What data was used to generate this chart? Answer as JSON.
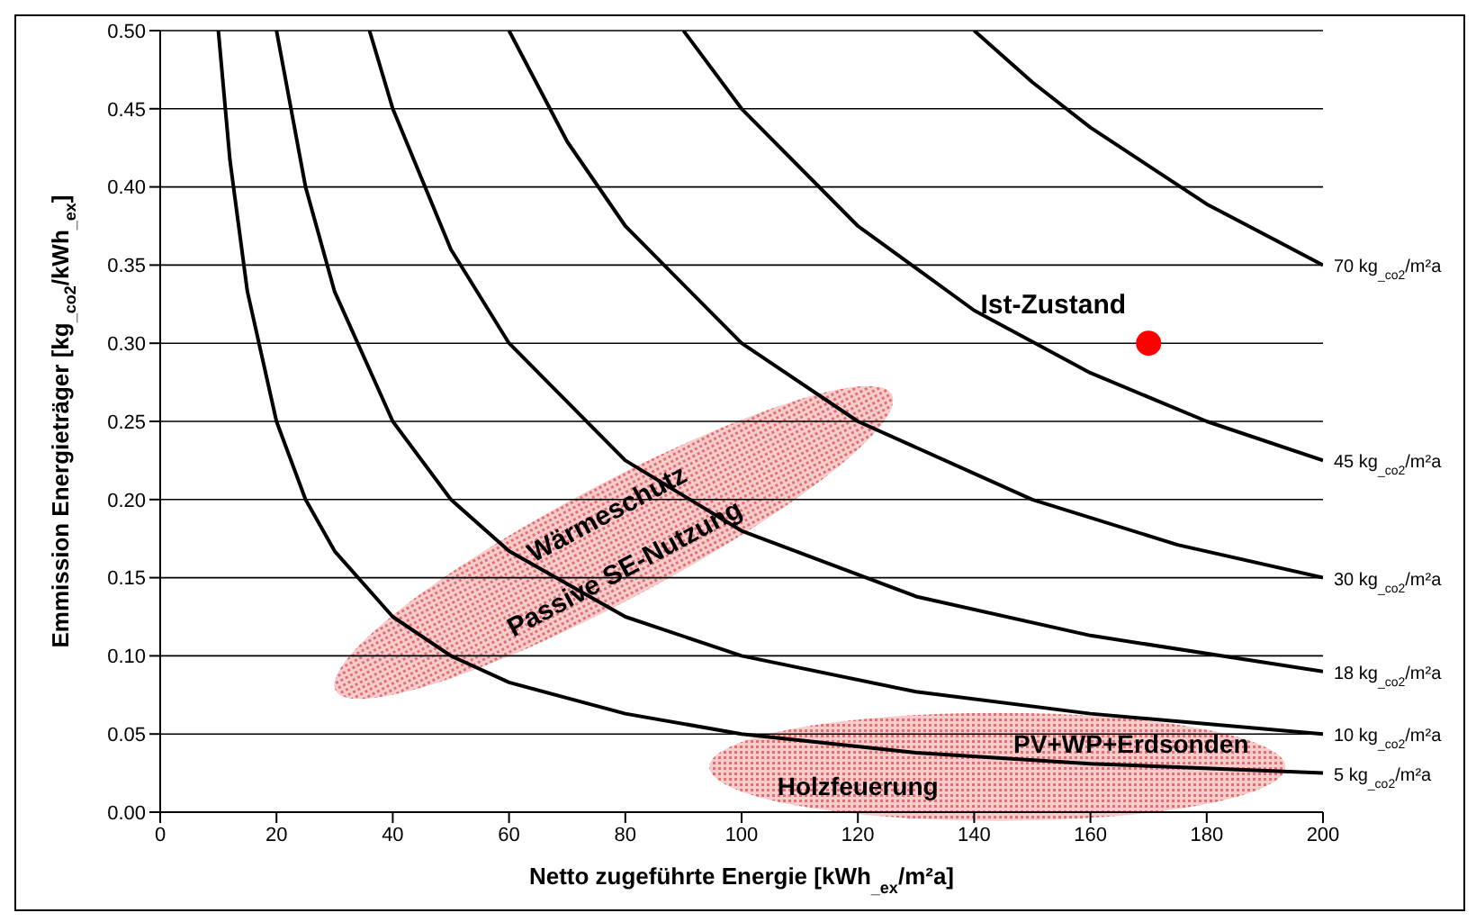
{
  "chart_data": {
    "type": "line",
    "xlabel": "Netto zugeführte Energie [kWh$_{_ex}$/m²a]",
    "ylabel": "Emmission Energieträger [kg$_{_co2}$/kWh$_{_ex}$]",
    "xlim": [
      0,
      200
    ],
    "xticks": [
      0,
      20,
      40,
      60,
      80,
      100,
      120,
      140,
      160,
      180,
      200
    ],
    "ylim": [
      0,
      0.5
    ],
    "yticks": [
      {
        "value": 0,
        "label": "0.00"
      },
      0.05,
      {
        "value": 0.1,
        "label": "0.10"
      },
      0.15,
      {
        "value": 0.2,
        "label": "0.20"
      },
      0.25,
      {
        "value": 0.3,
        "label": "0.30"
      },
      0.35,
      {
        "value": 0.4,
        "label": "0.40"
      },
      0.45,
      {
        "value": 0.5,
        "label": "0.50"
      }
    ],
    "grid": "y",
    "marker": "none",
    "line_style": "solid",
    "series": [
      {
        "name": "70 kg$_{_co2}$/m²a",
        "color": "#000000",
        "x": [
          140,
          150,
          160,
          180,
          200
        ],
        "values": [
          0.5,
          0.467,
          0.438,
          0.389,
          0.35
        ]
      },
      {
        "name": "45 kg$_{_co2}$/m²a",
        "color": "#000000",
        "x": [
          90,
          100,
          120,
          140,
          160,
          180,
          200
        ],
        "values": [
          0.5,
          0.45,
          0.375,
          0.321,
          0.281,
          0.25,
          0.225
        ]
      },
      {
        "name": "30 kg$_{_co2}$/m²a",
        "color": "#000000",
        "x": [
          60,
          70,
          80,
          100,
          120,
          150,
          175,
          200
        ],
        "values": [
          0.5,
          0.429,
          0.375,
          0.3,
          0.25,
          0.2,
          0.171,
          0.15
        ]
      },
      {
        "name": "18 kg$_{_co2}$/m²a",
        "color": "#000000",
        "x": [
          36,
          40,
          50,
          60,
          80,
          100,
          130,
          160,
          200
        ],
        "values": [
          0.5,
          0.45,
          0.36,
          0.3,
          0.225,
          0.18,
          0.138,
          0.113,
          0.09
        ]
      },
      {
        "name": "10 kg$_{_co2}$/m²a",
        "color": "#000000",
        "x": [
          20,
          25,
          30,
          40,
          50,
          60,
          80,
          100,
          130,
          160,
          200
        ],
        "values": [
          0.5,
          0.4,
          0.333,
          0.25,
          0.2,
          0.167,
          0.125,
          0.1,
          0.077,
          0.063,
          0.05
        ]
      },
      {
        "name": "5 kg$_{_co2}$/m²a",
        "color": "#000000",
        "x": [
          10,
          12,
          15,
          20,
          25,
          30,
          40,
          50,
          60,
          80,
          100,
          130,
          160,
          200
        ],
        "values": [
          0.5,
          0.417,
          0.333,
          0.25,
          0.2,
          0.167,
          0.125,
          0.1,
          0.083,
          0.063,
          0.05,
          0.038,
          0.031,
          0.025
        ]
      },
      {
        "name": "Ist-Zustand",
        "type": "scatter",
        "marker": "circle",
        "color": "#ff0000",
        "x": [
          170
        ],
        "values": [
          0.3
        ]
      }
    ],
    "annotations": [
      "Wärmeschutz",
      "Passive SE-Nutzung",
      "PV+WP+Erdsonden",
      "Holzfeuerung"
    ]
  }
}
